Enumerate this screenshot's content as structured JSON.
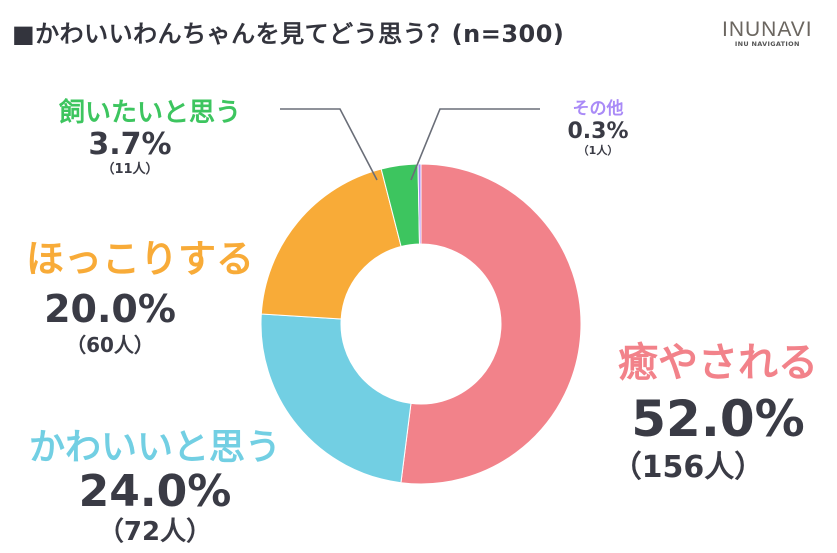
{
  "header": {
    "title": "■かわいいわんちゃんを見てどう思う？(n=300)",
    "logo_main": "INUNAVI",
    "logo_sub": "INU NAVIGATION"
  },
  "colors": {
    "healing": "#f2828a",
    "cute": "#72cfe3",
    "warm": "#f8ab38",
    "want": "#3dc55f",
    "other": "#a98af7",
    "text": "#3a3b45",
    "leader": "#6a6e78"
  },
  "labels": {
    "healing": {
      "name": "癒やされる",
      "pct": "52.0%",
      "count": "（156人）"
    },
    "cute": {
      "name": "かわいいと思う",
      "pct": "24.0%",
      "count": "（72人）"
    },
    "warm": {
      "name": "ほっこりする",
      "pct": "20.0%",
      "count": "（60人）"
    },
    "want": {
      "name": "飼いたいと思う",
      "pct": "3.7%",
      "count": "（11人）"
    },
    "other": {
      "name": "その他",
      "pct": "0.3%",
      "count": "（1人）"
    }
  },
  "chart_data": {
    "type": "pie",
    "variant": "donut",
    "title": "かわいいわんちゃんを見てどう思う？(n=300)",
    "categories": [
      "癒やされる",
      "かわいいと思う",
      "ほっこりする",
      "飼いたいと思う",
      "その他"
    ],
    "values": [
      52.0,
      24.0,
      20.0,
      3.7,
      0.3
    ],
    "counts": [
      156,
      72,
      60,
      11,
      1
    ],
    "unit": "%",
    "n": 300,
    "start_angle": "12 o'clock, clockwise",
    "colors": [
      "#f2828a",
      "#72cfe3",
      "#f8ab38",
      "#3dc55f",
      "#a98af7"
    ],
    "legend": "none (direct labels)"
  }
}
